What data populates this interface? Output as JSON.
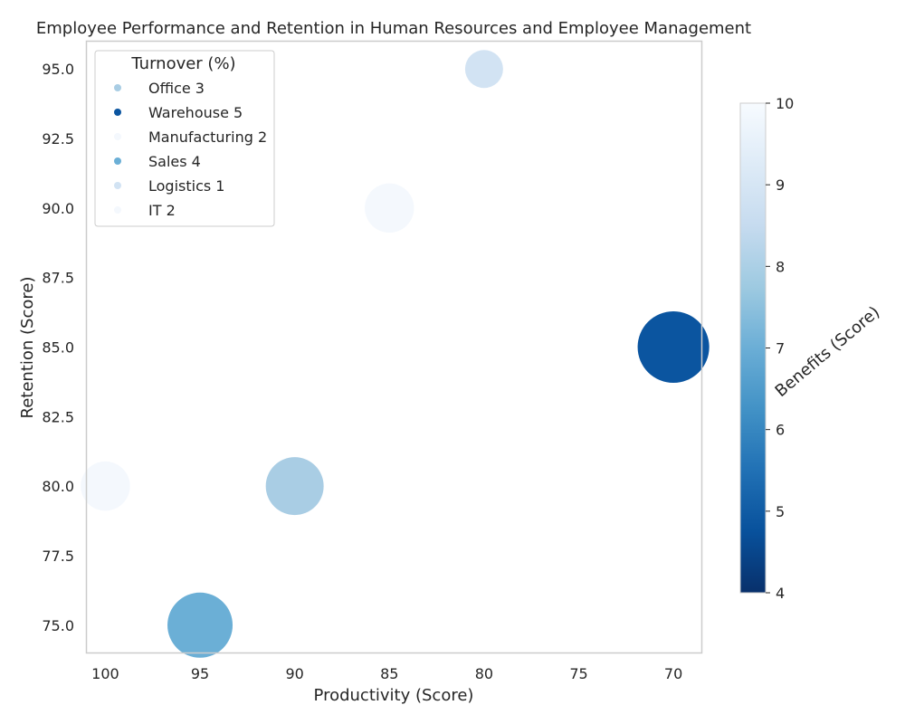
{
  "chart_data": {
    "type": "scatter",
    "title": "Employee Performance and Retention in Human Resources and Employee Management",
    "xlabel": "Productivity (Score)",
    "ylabel": "Retention (Score)",
    "x_ticks": [
      "100",
      "95",
      "90",
      "85",
      "80",
      "75",
      "70"
    ],
    "y_ticks": [
      "75.0",
      "77.5",
      "80.0",
      "82.5",
      "85.0",
      "87.5",
      "90.0",
      "92.5",
      "95.0"
    ],
    "xlim": [
      101,
      68.5
    ],
    "x_inverted": true,
    "ylim": [
      74,
      96
    ],
    "grid": false,
    "legend": {
      "title": "Turnover (%)",
      "position": "top-left",
      "entries": [
        {
          "label": "Office 3",
          "color": "#a9cde4"
        },
        {
          "label": "Warehouse 5",
          "color": "#0b55a0"
        },
        {
          "label": "Manufacturing 2",
          "color": "#f4f8fd"
        },
        {
          "label": "Sales 4",
          "color": "#6bafd6"
        },
        {
          "label": "Logistics 1",
          "color": "#d2e3f3"
        },
        {
          "label": "IT 2",
          "color": "#f4f8fd"
        }
      ]
    },
    "colorbar": {
      "label": "Benefits (Score)",
      "min": 4,
      "max": 10,
      "ticks": [
        "4",
        "5",
        "6",
        "7",
        "8",
        "9",
        "10"
      ],
      "colormap": "Blues_r"
    },
    "series": [
      {
        "name": "Office 3",
        "x": 90,
        "y": 80,
        "turnover": 3,
        "benefits": 7.8,
        "color": "#a9cde4"
      },
      {
        "name": "Warehouse 5",
        "x": 70,
        "y": 85,
        "turnover": 5,
        "benefits": 5.2,
        "color": "#0b55a0"
      },
      {
        "name": "Manufacturing 2",
        "x": 85,
        "y": 90,
        "turnover": 2,
        "benefits": 9.8,
        "color": "#f4f8fd"
      },
      {
        "name": "Sales 4",
        "x": 95,
        "y": 75,
        "turnover": 4,
        "benefits": 7.0,
        "color": "#6bafd6"
      },
      {
        "name": "Logistics 1",
        "x": 80,
        "y": 95,
        "turnover": 1,
        "benefits": 9.0,
        "color": "#d2e3f3"
      },
      {
        "name": "IT 2",
        "x": 100,
        "y": 80,
        "turnover": 2,
        "benefits": 9.8,
        "color": "#f4f8fd"
      }
    ]
  }
}
